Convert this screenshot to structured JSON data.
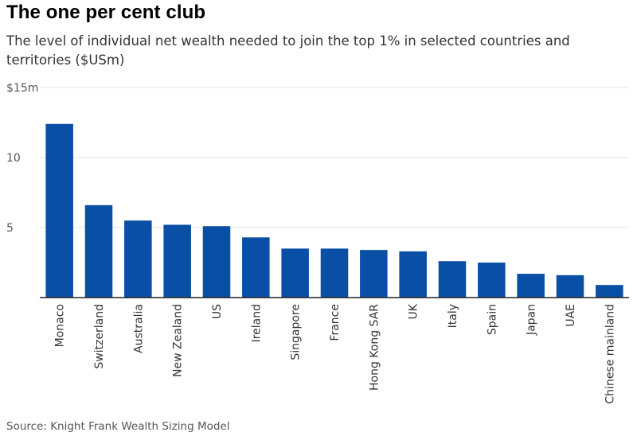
{
  "title": "The one per cent club",
  "subtitle": "The level of individual net wealth needed to join the top 1% in selected countries and territories ($USm)",
  "source": "Source: Knight Frank Wealth Sizing Model",
  "colors": {
    "bar": "#0a4fa6",
    "grid": "#e3e3e3",
    "axis": "#222222"
  },
  "chart_data": {
    "type": "bar",
    "categories": [
      "Monaco",
      "Switzerland",
      "Australia",
      "New Zealand",
      "US",
      "Ireland",
      "Singapore",
      "France",
      "Hong Kong SAR",
      "UK",
      "Italy",
      "Spain",
      "Japan",
      "UAE",
      "Chinese mainland"
    ],
    "values": [
      12.4,
      6.6,
      5.5,
      5.2,
      5.1,
      4.3,
      3.5,
      3.5,
      3.4,
      3.3,
      2.6,
      2.5,
      1.7,
      1.6,
      0.9
    ],
    "ylim": [
      0,
      15
    ],
    "yticks": [
      0,
      5,
      10,
      15
    ],
    "ytick_labels": [
      "",
      "5",
      "10",
      "$15m"
    ],
    "xlabel": "",
    "ylabel": "",
    "grid": true
  }
}
